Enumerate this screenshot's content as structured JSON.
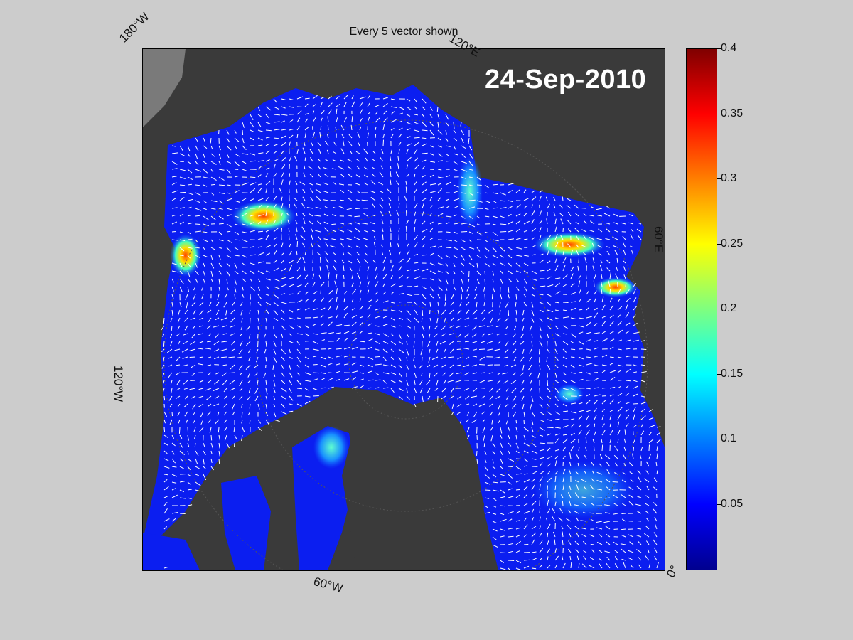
{
  "title": "Every 5 vector shown",
  "date": "24-Sep-2010",
  "longitude_labels": {
    "w180": "180°W",
    "e120": "120°E",
    "e60": "60°E",
    "zero": "0°",
    "w60": "60°W",
    "w120": "120°W"
  },
  "colorbar": {
    "colormap": "jet",
    "range": [
      0,
      0.4
    ],
    "ticks": [
      "0.4",
      "0.35",
      "0.3",
      "0.25",
      "0.2",
      "0.15",
      "0.1",
      "0.05"
    ]
  },
  "colors": {
    "land": "#3a3a3a",
    "background": "#cccccc",
    "vectors": "#ffffff"
  }
}
